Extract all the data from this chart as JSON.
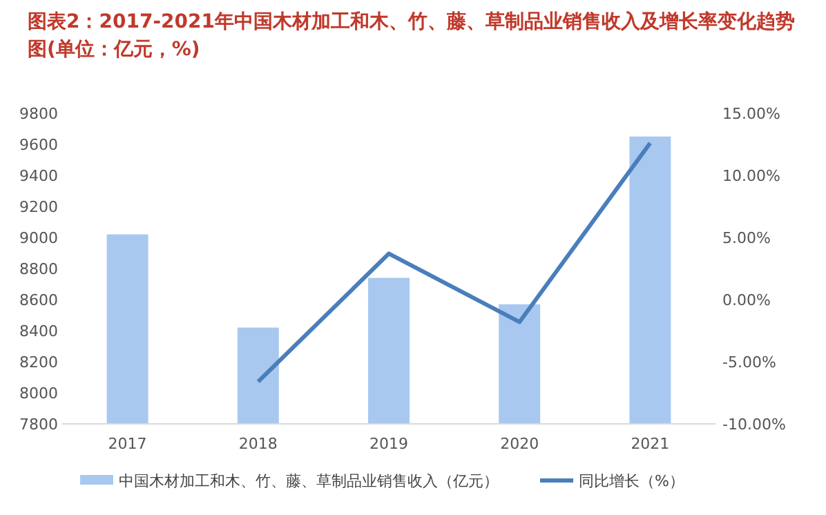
{
  "chart_data": {
    "type": "bar",
    "title": "图表2：2017-2021年中国木材加工和木、竹、藤、草制品业销售收入及增长率变化趋势图(单位：亿元，%)",
    "categories": [
      "2017",
      "2018",
      "2019",
      "2020",
      "2021"
    ],
    "series": [
      {
        "name": "中国木材加工和木、竹、藤、草制品业销售收入（亿元）",
        "color": "#a9c8ef",
        "values": [
          9020,
          8420,
          8740,
          8570,
          9650
        ]
      },
      {
        "name": "同比增长（%）",
        "type": "line",
        "axis": "y2",
        "color": "#4a7ebb",
        "values": [
          null,
          -6.6,
          3.7,
          -1.8,
          12.6
        ]
      }
    ],
    "ylim": [
      7800,
      9800
    ],
    "yticks": [
      7800,
      8000,
      8200,
      8400,
      8600,
      8800,
      9000,
      9200,
      9400,
      9600,
      9800
    ],
    "y2lim": [
      -10,
      15
    ],
    "y2ticks": [
      {
        "value": -10,
        "label": "-10.00%"
      },
      {
        "value": -5,
        "label": "-5.00%"
      },
      {
        "value": 0,
        "label": "0.00%"
      },
      {
        "value": 5,
        "label": "5.00%"
      },
      {
        "value": 10,
        "label": "10.00%"
      },
      {
        "value": 15,
        "label": "15.00%"
      }
    ],
    "grid": false,
    "legend": "bottom",
    "marker": "none",
    "line_style": "solid"
  }
}
